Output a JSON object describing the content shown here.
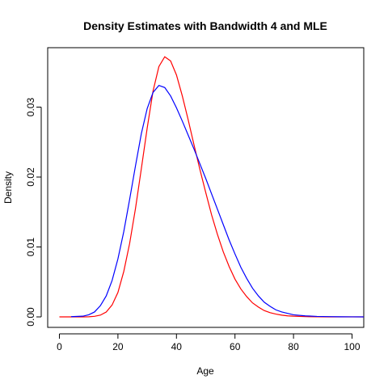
{
  "chart_data": {
    "type": "line",
    "title": "Density Estimates with Bandwidth 4 and MLE",
    "xlabel": "Age",
    "ylabel": "Density",
    "xlim": [
      -4,
      104
    ],
    "ylim": [
      -0.0015,
      0.0385
    ],
    "x_ticks": [
      0,
      20,
      40,
      60,
      80,
      100
    ],
    "x_tick_labels": [
      "0",
      "20",
      "40",
      "60",
      "80",
      "100"
    ],
    "y_ticks": [
      0.0,
      0.01,
      0.02,
      0.03
    ],
    "y_tick_labels": [
      "0.00",
      "0.01",
      "0.02",
      "0.03"
    ],
    "grid": false,
    "legend": "none",
    "series": [
      {
        "color": "#ff0000",
        "x": [
          0,
          4,
          8,
          10,
          12,
          14,
          16,
          18,
          20,
          22,
          24,
          26,
          28,
          30,
          32,
          34,
          36,
          38,
          40,
          42,
          44,
          46,
          48,
          50,
          52,
          54,
          56,
          58,
          60,
          62,
          64,
          66,
          68,
          70,
          72,
          74,
          76,
          78,
          80,
          84,
          88,
          92,
          96,
          100,
          104
        ],
        "y": [
          0.0,
          0.0,
          0.0,
          2e-05,
          8e-05,
          0.00025,
          0.0007,
          0.0017,
          0.0035,
          0.0065,
          0.0105,
          0.0155,
          0.0212,
          0.027,
          0.0323,
          0.0358,
          0.0372,
          0.0366,
          0.0346,
          0.0316,
          0.0282,
          0.0246,
          0.0211,
          0.0178,
          0.0146,
          0.0118,
          0.0093,
          0.0072,
          0.0054,
          0.004,
          0.0029,
          0.002,
          0.0014,
          0.0009,
          0.0006,
          0.0004,
          0.00025,
          0.00015,
          0.0001,
          4e-05,
          1e-05,
          0.0,
          0.0,
          0.0,
          0.0
        ]
      },
      {
        "color": "#0000ff",
        "x": [
          4,
          8,
          10,
          12,
          14,
          16,
          18,
          20,
          22,
          24,
          26,
          28,
          30,
          32,
          34,
          36,
          38,
          40,
          42,
          44,
          46,
          48,
          50,
          52,
          54,
          56,
          58,
          60,
          62,
          64,
          66,
          68,
          70,
          72,
          74,
          76,
          78,
          80,
          84,
          88,
          92,
          96,
          100,
          104
        ],
        "y": [
          3e-05,
          0.0001,
          0.0003,
          0.0007,
          0.0016,
          0.003,
          0.0052,
          0.0083,
          0.0122,
          0.0168,
          0.0216,
          0.0262,
          0.0298,
          0.0321,
          0.0331,
          0.0328,
          0.0316,
          0.0299,
          0.028,
          0.026,
          0.024,
          0.0219,
          0.0198,
          0.0176,
          0.0154,
          0.0132,
          0.011,
          0.009,
          0.0071,
          0.0055,
          0.0041,
          0.003,
          0.0021,
          0.0015,
          0.001,
          0.0007,
          0.0005,
          0.0003,
          0.00015,
          7e-05,
          4e-05,
          2e-05,
          1e-05,
          0.0
        ]
      }
    ]
  }
}
